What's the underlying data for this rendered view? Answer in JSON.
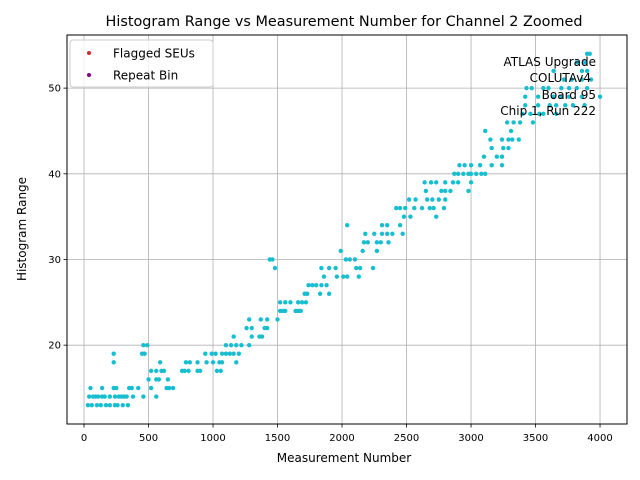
{
  "chart_data": {
    "type": "scatter",
    "title": "Histogram Range vs Measurement Number for Channel 2 Zoomed",
    "xlabel": "Measurement Number",
    "ylabel": "Histogram Range",
    "xlim": [
      -132,
      4209
    ],
    "ylim": [
      10.8,
      56.2
    ],
    "xticks": [
      0,
      500,
      1000,
      1500,
      2000,
      2500,
      3000,
      3500,
      4000
    ],
    "yticks": [
      20,
      30,
      40,
      50
    ],
    "grid": true,
    "legend": {
      "placement": "top-left",
      "entries": [
        {
          "label": "Flagged SEUs",
          "color": "#d62728"
        },
        {
          "label": "Repeat Bin",
          "color": "#800080"
        }
      ]
    },
    "annotation": [
      "ATLAS Upgrade",
      "COLUTAv4",
      "Board 95",
      "Chip 1, Run 222"
    ],
    "series": [
      {
        "name": "Histogram Range",
        "color": "#17becf",
        "points": [
          [
            30,
            13
          ],
          [
            60,
            13
          ],
          [
            100,
            13
          ],
          [
            130,
            13
          ],
          [
            170,
            13
          ],
          [
            200,
            13
          ],
          [
            240,
            13
          ],
          [
            260,
            13
          ],
          [
            300,
            13
          ],
          [
            340,
            13
          ],
          [
            40,
            14
          ],
          [
            70,
            14
          ],
          [
            90,
            14
          ],
          [
            110,
            14
          ],
          [
            140,
            14
          ],
          [
            160,
            14
          ],
          [
            200,
            14
          ],
          [
            240,
            14
          ],
          [
            270,
            14
          ],
          [
            290,
            14
          ],
          [
            310,
            14
          ],
          [
            330,
            14
          ],
          [
            380,
            14
          ],
          [
            460,
            14
          ],
          [
            560,
            14
          ],
          [
            50,
            15
          ],
          [
            140,
            15
          ],
          [
            230,
            15
          ],
          [
            250,
            15
          ],
          [
            350,
            15
          ],
          [
            370,
            15
          ],
          [
            420,
            15
          ],
          [
            520,
            15
          ],
          [
            640,
            15
          ],
          [
            660,
            15
          ],
          [
            690,
            15
          ],
          [
            560,
            16
          ],
          [
            580,
            16
          ],
          [
            650,
            16
          ],
          [
            500,
            16
          ],
          [
            520,
            17
          ],
          [
            560,
            17
          ],
          [
            600,
            17
          ],
          [
            620,
            17
          ],
          [
            760,
            17
          ],
          [
            780,
            17
          ],
          [
            810,
            17
          ],
          [
            880,
            17
          ],
          [
            900,
            17
          ],
          [
            1030,
            17
          ],
          [
            1060,
            17
          ],
          [
            590,
            18
          ],
          [
            790,
            18
          ],
          [
            820,
            18
          ],
          [
            880,
            18
          ],
          [
            950,
            18
          ],
          [
            1000,
            18
          ],
          [
            1050,
            18
          ],
          [
            1070,
            18
          ],
          [
            1180,
            18
          ],
          [
            230,
            18
          ],
          [
            230,
            19
          ],
          [
            450,
            19
          ],
          [
            470,
            19
          ],
          [
            940,
            19
          ],
          [
            990,
            19
          ],
          [
            1020,
            19
          ],
          [
            1070,
            19
          ],
          [
            1100,
            19
          ],
          [
            1130,
            19
          ],
          [
            1160,
            19
          ],
          [
            1200,
            19
          ],
          [
            460,
            20
          ],
          [
            490,
            20
          ],
          [
            1100,
            20
          ],
          [
            1140,
            20
          ],
          [
            1180,
            20
          ],
          [
            1220,
            20
          ],
          [
            1280,
            20
          ],
          [
            1160,
            21
          ],
          [
            1300,
            21
          ],
          [
            1360,
            21
          ],
          [
            1380,
            21
          ],
          [
            1260,
            22
          ],
          [
            1300,
            22
          ],
          [
            1400,
            22
          ],
          [
            1420,
            22
          ],
          [
            1280,
            23
          ],
          [
            1370,
            23
          ],
          [
            1420,
            23
          ],
          [
            1500,
            23
          ],
          [
            1520,
            24
          ],
          [
            1540,
            24
          ],
          [
            1560,
            24
          ],
          [
            1640,
            24
          ],
          [
            1660,
            24
          ],
          [
            1680,
            24
          ],
          [
            1520,
            25
          ],
          [
            1560,
            25
          ],
          [
            1600,
            25
          ],
          [
            1660,
            25
          ],
          [
            1690,
            25
          ],
          [
            1720,
            25
          ],
          [
            1710,
            26
          ],
          [
            1730,
            26
          ],
          [
            1830,
            26
          ],
          [
            1900,
            26
          ],
          [
            1740,
            27
          ],
          [
            1770,
            27
          ],
          [
            1800,
            27
          ],
          [
            1840,
            27
          ],
          [
            1880,
            27
          ],
          [
            1860,
            28
          ],
          [
            1960,
            28
          ],
          [
            2010,
            28
          ],
          [
            2040,
            28
          ],
          [
            2130,
            28
          ],
          [
            1840,
            29
          ],
          [
            1900,
            29
          ],
          [
            1950,
            29
          ],
          [
            2110,
            29
          ],
          [
            2140,
            29
          ],
          [
            2240,
            29
          ],
          [
            1440,
            30
          ],
          [
            1460,
            30
          ],
          [
            1480,
            29
          ],
          [
            2030,
            30
          ],
          [
            2060,
            30
          ],
          [
            2100,
            30
          ],
          [
            1990,
            31
          ],
          [
            2160,
            31
          ],
          [
            2270,
            31
          ],
          [
            2170,
            32
          ],
          [
            2200,
            32
          ],
          [
            2270,
            32
          ],
          [
            2300,
            32
          ],
          [
            2360,
            32
          ],
          [
            2180,
            33
          ],
          [
            2250,
            33
          ],
          [
            2310,
            33
          ],
          [
            2350,
            33
          ],
          [
            2390,
            33
          ],
          [
            2470,
            33
          ],
          [
            2040,
            34
          ],
          [
            2310,
            34
          ],
          [
            2350,
            34
          ],
          [
            2450,
            34
          ],
          [
            2480,
            35
          ],
          [
            2530,
            35
          ],
          [
            2730,
            35
          ],
          [
            2420,
            36
          ],
          [
            2450,
            36
          ],
          [
            2490,
            36
          ],
          [
            2560,
            36
          ],
          [
            2620,
            36
          ],
          [
            2680,
            36
          ],
          [
            2710,
            36
          ],
          [
            2790,
            36
          ],
          [
            2520,
            37
          ],
          [
            2570,
            37
          ],
          [
            2660,
            37
          ],
          [
            2700,
            37
          ],
          [
            2750,
            37
          ],
          [
            2800,
            37
          ],
          [
            2650,
            38
          ],
          [
            2770,
            38
          ],
          [
            2800,
            38
          ],
          [
            2840,
            38
          ],
          [
            2980,
            38
          ],
          [
            2640,
            39
          ],
          [
            2690,
            39
          ],
          [
            2730,
            39
          ],
          [
            2800,
            39
          ],
          [
            2860,
            39
          ],
          [
            2900,
            39
          ],
          [
            3000,
            39
          ],
          [
            2870,
            40
          ],
          [
            2900,
            40
          ],
          [
            2940,
            40
          ],
          [
            2980,
            40
          ],
          [
            3000,
            40
          ],
          [
            3040,
            40
          ],
          [
            3080,
            40
          ],
          [
            3110,
            40
          ],
          [
            2910,
            41
          ],
          [
            2950,
            41
          ],
          [
            3000,
            41
          ],
          [
            3070,
            41
          ],
          [
            3160,
            41
          ],
          [
            3240,
            41
          ],
          [
            3100,
            42
          ],
          [
            3200,
            42
          ],
          [
            3240,
            42
          ],
          [
            3160,
            43
          ],
          [
            3250,
            43
          ],
          [
            3290,
            43
          ],
          [
            3150,
            44
          ],
          [
            3240,
            44
          ],
          [
            3290,
            44
          ],
          [
            3320,
            44
          ],
          [
            3370,
            44
          ],
          [
            3310,
            45
          ],
          [
            3110,
            45
          ],
          [
            3280,
            46
          ],
          [
            3330,
            46
          ],
          [
            3380,
            46
          ],
          [
            3480,
            46
          ],
          [
            3400,
            47
          ],
          [
            3460,
            47
          ],
          [
            3530,
            47
          ],
          [
            3560,
            47
          ],
          [
            3660,
            47
          ],
          [
            3420,
            48
          ],
          [
            3520,
            48
          ],
          [
            3610,
            48
          ],
          [
            3660,
            48
          ],
          [
            3730,
            48
          ],
          [
            3790,
            48
          ],
          [
            3880,
            48
          ],
          [
            3420,
            49
          ],
          [
            3520,
            49
          ],
          [
            3640,
            49
          ],
          [
            3700,
            49
          ],
          [
            3760,
            49
          ],
          [
            3860,
            49
          ],
          [
            4000,
            49
          ],
          [
            3430,
            50
          ],
          [
            3470,
            50
          ],
          [
            3560,
            50
          ],
          [
            3600,
            50
          ],
          [
            3700,
            50
          ],
          [
            3760,
            50
          ],
          [
            3820,
            50
          ],
          [
            3900,
            50
          ],
          [
            3720,
            51
          ],
          [
            3780,
            51
          ],
          [
            3860,
            51
          ],
          [
            3930,
            51
          ],
          [
            3640,
            52
          ],
          [
            3860,
            52
          ],
          [
            3900,
            52
          ],
          [
            3820,
            53
          ],
          [
            3880,
            53
          ],
          [
            3900,
            54
          ],
          [
            3920,
            54
          ]
        ]
      }
    ]
  }
}
